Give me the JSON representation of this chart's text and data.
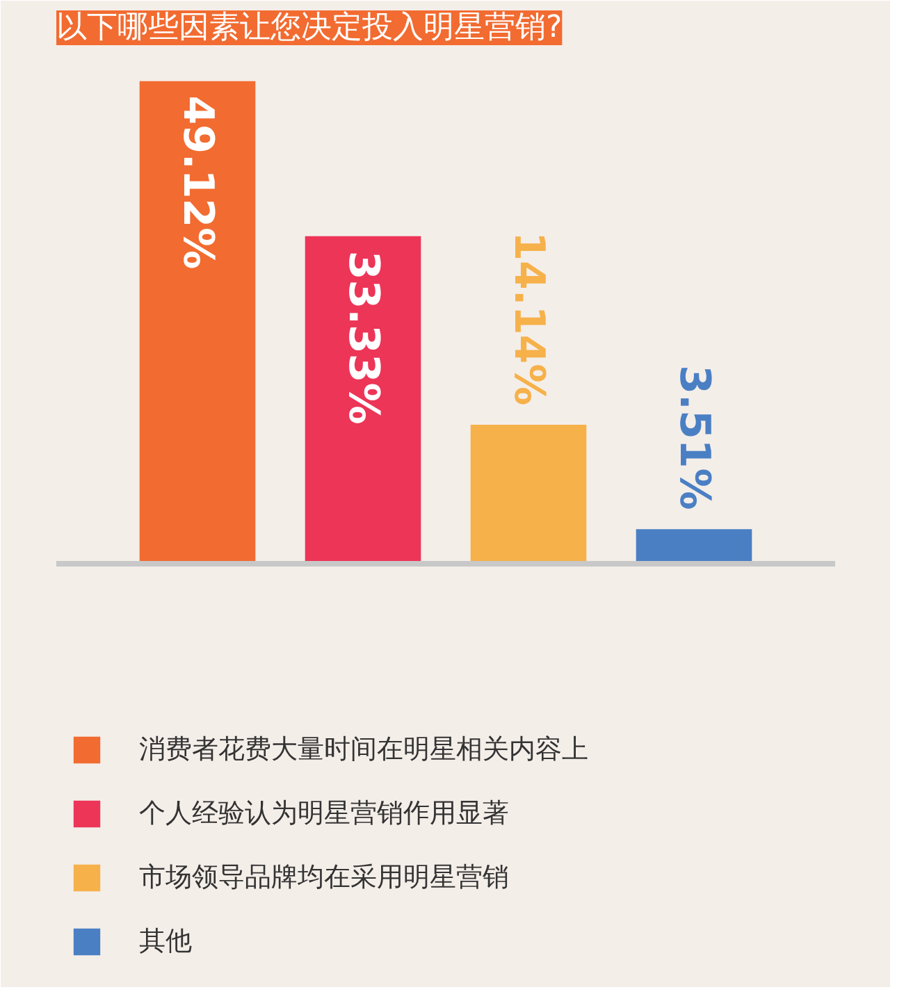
{
  "chart_data": {
    "type": "bar",
    "title": "以下哪些因素让您决定投入明星营销?",
    "categories": [
      null
    ],
    "series": [
      {
        "name": "消费者花费大量时间在明星相关内容上",
        "color": "#f26b30",
        "values": [
          49.12
        ],
        "value_labels": [
          "49.12%"
        ]
      },
      {
        "name": "个人经验认为明星营销作用显著",
        "color": "#ec3557",
        "values": [
          33.33
        ],
        "value_labels": [
          "33.33%"
        ]
      },
      {
        "name": "市场领导品牌均在采用明星营销",
        "color": "#f6b14a",
        "values": [
          14.14
        ],
        "value_labels": [
          "14.14%"
        ]
      },
      {
        "name": "其他",
        "color": "#4a7fc4",
        "values": [
          3.51
        ],
        "value_labels": [
          "3.51%"
        ]
      }
    ],
    "ref_lines": [
      {
        "axis": "y",
        "value": 0,
        "color": "#c8c8c8"
      }
    ],
    "legend": "bottom left"
  }
}
